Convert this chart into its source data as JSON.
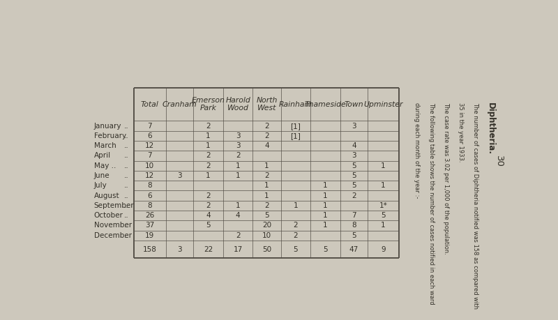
{
  "title": "Diphtheria.",
  "side_text_lines": [
    "The number of cases of Diphtheria notified was 158 as compared with",
    "35 in the year 1933.",
    "The case rate was 3.02 per 1,000 of the population.",
    "The following table shows the number of cases notified in each ward",
    "during each month of the year :-"
  ],
  "page_number": "30",
  "columns": [
    "Total",
    "Cranham",
    "Emerson\nPark",
    "Harold\nWood",
    "North\nWest",
    "Rainham",
    "Thameside",
    "Town",
    "Upminster"
  ],
  "row_labels": [
    "January",
    "February",
    "March",
    "April",
    "May ..",
    "June",
    "July",
    "August",
    "September",
    "October",
    "November",
    "December"
  ],
  "table_data": [
    [
      "7",
      "",
      "2",
      "",
      "2",
      "[1]",
      "",
      "3",
      ""
    ],
    [
      "6",
      "",
      "1",
      "3",
      "2",
      "[1]",
      "",
      "",
      ""
    ],
    [
      "12",
      "",
      "1",
      "3",
      "4",
      "",
      "",
      "4",
      ""
    ],
    [
      "7",
      "",
      "2",
      "2",
      "",
      "",
      "",
      "3",
      ""
    ],
    [
      "10",
      "",
      "2",
      "1",
      "1",
      "",
      "",
      "5",
      "1"
    ],
    [
      "12",
      "3",
      "1",
      "1",
      "2",
      "",
      "",
      "5",
      ""
    ],
    [
      "8",
      "",
      "",
      "",
      "1",
      "",
      "1",
      "5",
      "1"
    ],
    [
      "6",
      "",
      "2",
      "",
      "1",
      "",
      "1",
      "2",
      ""
    ],
    [
      "8",
      "",
      "2",
      "1",
      "2",
      "1",
      "1",
      "",
      "1*"
    ],
    [
      "26",
      "",
      "4",
      "4",
      "5",
      "",
      "1",
      "7",
      "5"
    ],
    [
      "37",
      "",
      "5",
      "",
      "20",
      "2",
      "1",
      "8",
      "1"
    ],
    [
      "19",
      "",
      "",
      "2",
      "10",
      "2",
      "",
      "5",
      ""
    ]
  ],
  "totals_row": [
    "158",
    "3",
    "22",
    "17",
    "50",
    "5",
    "5",
    "47",
    "9"
  ],
  "bg_color": "#cdc8bc",
  "table_bg": "#cdc8bc",
  "text_color": "#333028",
  "line_color": "#555048"
}
